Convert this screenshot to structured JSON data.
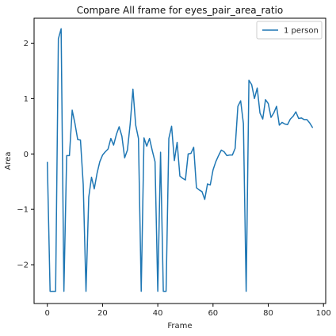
{
  "chart_data": {
    "type": "line",
    "title": "Compare All frame for eyes_pair_area_ratio",
    "xlabel": "Frame",
    "ylabel": "Area",
    "xlim": [
      -4.8,
      100.8
    ],
    "ylim": [
      -2.7,
      2.45
    ],
    "xticks": [
      0,
      20,
      40,
      60,
      80,
      100
    ],
    "yticks": [
      -2,
      -1,
      0,
      1,
      2
    ],
    "grid": false,
    "legend_position": "top-right",
    "series": [
      {
        "name": "1 person",
        "color": "#1f77b4",
        "x": [
          0,
          1,
          2,
          3,
          4,
          5,
          6,
          7,
          8,
          9,
          10,
          11,
          12,
          13,
          14,
          15,
          16,
          17,
          18,
          19,
          20,
          21,
          22,
          23,
          24,
          25,
          26,
          27,
          28,
          29,
          30,
          31,
          32,
          33,
          34,
          35,
          36,
          37,
          38,
          39,
          40,
          41,
          42,
          43,
          44,
          45,
          46,
          47,
          48,
          49,
          50,
          51,
          52,
          53,
          54,
          55,
          56,
          57,
          58,
          59,
          60,
          61,
          62,
          63,
          64,
          65,
          66,
          67,
          68,
          69,
          70,
          71,
          72,
          73,
          74,
          75,
          76,
          77,
          78,
          79,
          80,
          81,
          82,
          83,
          84,
          85,
          86,
          87,
          88,
          89,
          90,
          91,
          92,
          93,
          94,
          95,
          96
        ],
        "y": [
          -0.15,
          -2.48,
          -2.48,
          -2.48,
          2.08,
          2.26,
          -2.48,
          -0.03,
          -0.03,
          0.79,
          0.55,
          0.26,
          0.25,
          -0.55,
          -2.48,
          -0.78,
          -0.42,
          -0.63,
          -0.35,
          -0.14,
          -0.02,
          0.04,
          0.09,
          0.28,
          0.16,
          0.35,
          0.49,
          0.32,
          -0.07,
          0.07,
          0.54,
          1.17,
          0.52,
          0.28,
          -2.48,
          0.29,
          0.14,
          0.28,
          0.06,
          -0.14,
          -2.48,
          0.03,
          -2.48,
          -2.48,
          0.28,
          0.5,
          -0.12,
          0.21,
          -0.4,
          -0.44,
          -0.47,
          0.0,
          0.01,
          0.12,
          -0.61,
          -0.65,
          -0.68,
          -0.82,
          -0.54,
          -0.56,
          -0.29,
          -0.14,
          -0.03,
          0.07,
          0.04,
          -0.03,
          -0.02,
          -0.02,
          0.1,
          0.86,
          0.96,
          0.55,
          -2.48,
          1.33,
          1.25,
          1.0,
          1.19,
          0.74,
          0.63,
          0.98,
          0.91,
          0.66,
          0.74,
          0.86,
          0.52,
          0.57,
          0.54,
          0.53,
          0.63,
          0.68,
          0.76,
          0.64,
          0.65,
          0.62,
          0.62,
          0.56,
          0.48
        ]
      }
    ]
  }
}
